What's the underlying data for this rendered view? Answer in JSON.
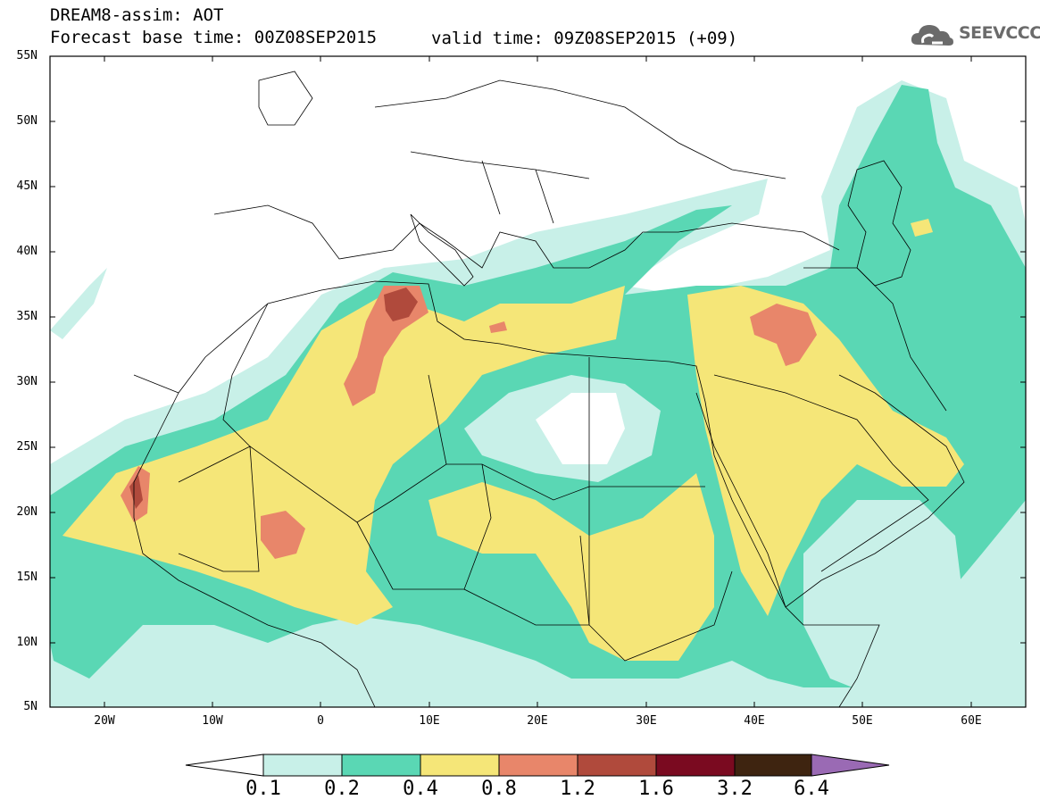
{
  "header": {
    "title_line1": "DREAM8-assim: AOT",
    "title_line2": "Forecast base time: 00Z08SEP2015",
    "valid_time": "valid time: 09Z08SEP2015 (+09)",
    "logo_text": "SEEVCCC",
    "logo_icon": "cloud-icon"
  },
  "map": {
    "lat_labels": [
      "55N",
      "50N",
      "45N",
      "40N",
      "35N",
      "30N",
      "25N",
      "20N",
      "15N",
      "10N",
      "5N"
    ],
    "lon_labels": [
      "20W",
      "10W",
      "0",
      "10E",
      "20E",
      "30E",
      "40E",
      "50E",
      "60E"
    ],
    "extent": {
      "lon_min": -25,
      "lon_max": 65,
      "lat_min": 5,
      "lat_max": 55
    }
  },
  "colorbar": {
    "labels": [
      "0.1",
      "0.2",
      "0.4",
      "0.8",
      "1.2",
      "1.6",
      "3.2",
      "6.4"
    ],
    "colors": [
      "#ffffff",
      "#c8f0e8",
      "#5ad7b4",
      "#f5e678",
      "#e8866a",
      "#b04a3c",
      "#7a0a20",
      "#3e2410",
      "#9a6ab4"
    ]
  }
}
